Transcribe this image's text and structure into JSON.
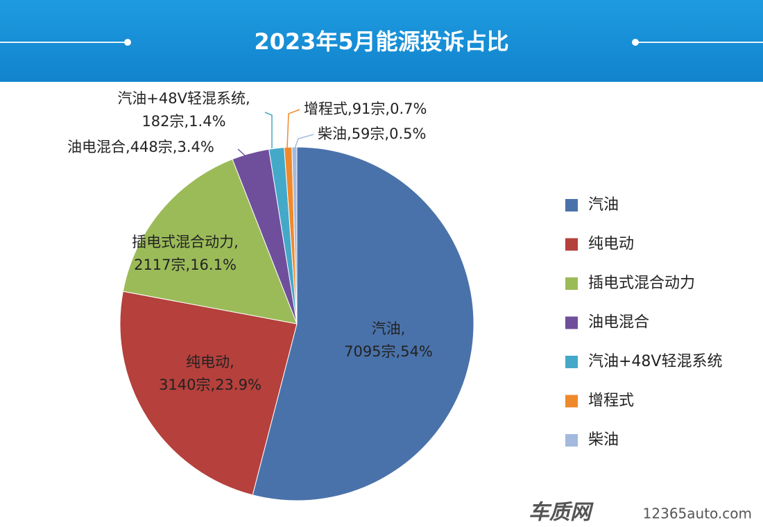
{
  "chart_data": {
    "type": "pie",
    "title": "2023年5月能源投诉占比",
    "categories": [
      "汽油",
      "纯电动",
      "插电式混合动力",
      "油电混合",
      "汽油+48V轻混系统",
      "增程式",
      "柴油"
    ],
    "values": [
      7095,
      3140,
      2117,
      448,
      182,
      91,
      59
    ],
    "value_labels": [
      "7095宗,54%",
      "3140宗,23.9%",
      "2117宗,16.1%",
      "448宗,3.4%",
      "182宗,1.4%",
      "91宗,0.7%",
      "59宗,0.5%"
    ],
    "label_separator": ",",
    "colors": [
      "#4a72aa",
      "#b5403c",
      "#9bbb59",
      "#6f4f9b",
      "#44a9c9",
      "#f0892c",
      "#a3b9de"
    ],
    "legend": "right",
    "watermark": "车质网",
    "watermark_url": "12365auto.com"
  }
}
